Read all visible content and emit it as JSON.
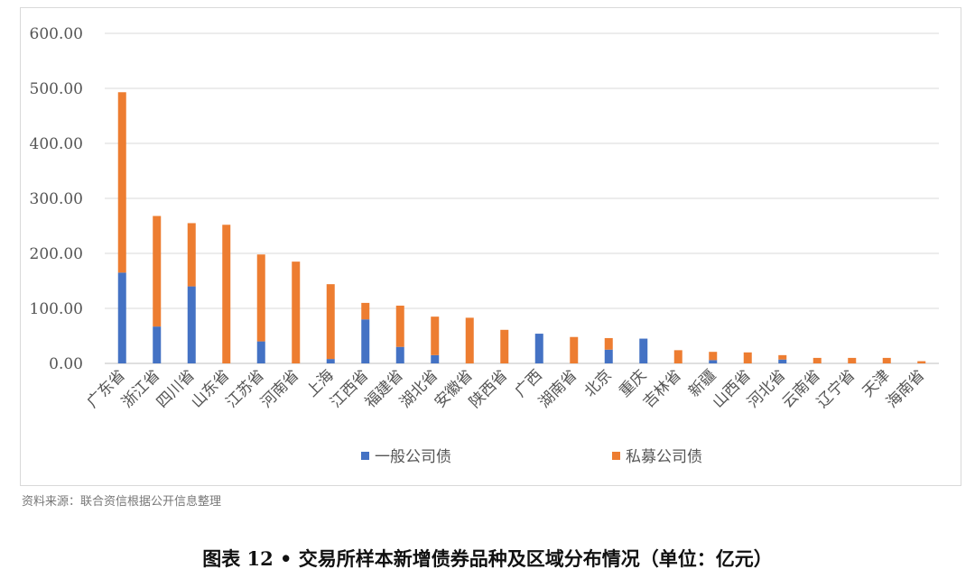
{
  "chart_data": {
    "type": "bar",
    "stacked": true,
    "ylim": [
      0,
      600
    ],
    "yticks": [
      "0.00",
      "100.00",
      "200.00",
      "300.00",
      "400.00",
      "500.00",
      "600.00"
    ],
    "grid": true,
    "legend_position": "bottom",
    "categories": [
      "广东省",
      "浙江省",
      "四川省",
      "山东省",
      "江苏省",
      "河南省",
      "上海",
      "江西省",
      "福建省",
      "湖北省",
      "安徽省",
      "陕西省",
      "广西",
      "湖南省",
      "北京",
      "重庆",
      "吉林省",
      "新疆",
      "山西省",
      "河北省",
      "云南省",
      "辽宁省",
      "天津",
      "海南省"
    ],
    "series": [
      {
        "name": "一般公司债",
        "color": "#4472C4",
        "values": [
          165,
          67,
          140,
          0,
          40,
          0,
          8,
          80,
          30,
          15,
          0,
          0,
          54,
          0,
          25,
          45,
          0,
          6,
          0,
          7,
          0,
          0,
          0,
          0
        ]
      },
      {
        "name": "私募公司债",
        "color": "#ED7D31",
        "values": [
          328,
          201,
          115,
          252,
          158,
          185,
          136,
          30,
          75,
          70,
          83,
          61,
          0,
          48,
          21,
          0,
          24,
          15,
          20,
          8,
          10,
          10,
          10,
          4
        ]
      }
    ]
  },
  "source_text": "资料来源：联合资信根据公开信息整理",
  "caption": "图表 12 • 交易所样本新增债券品种及区域分布情况（单位：亿元）"
}
